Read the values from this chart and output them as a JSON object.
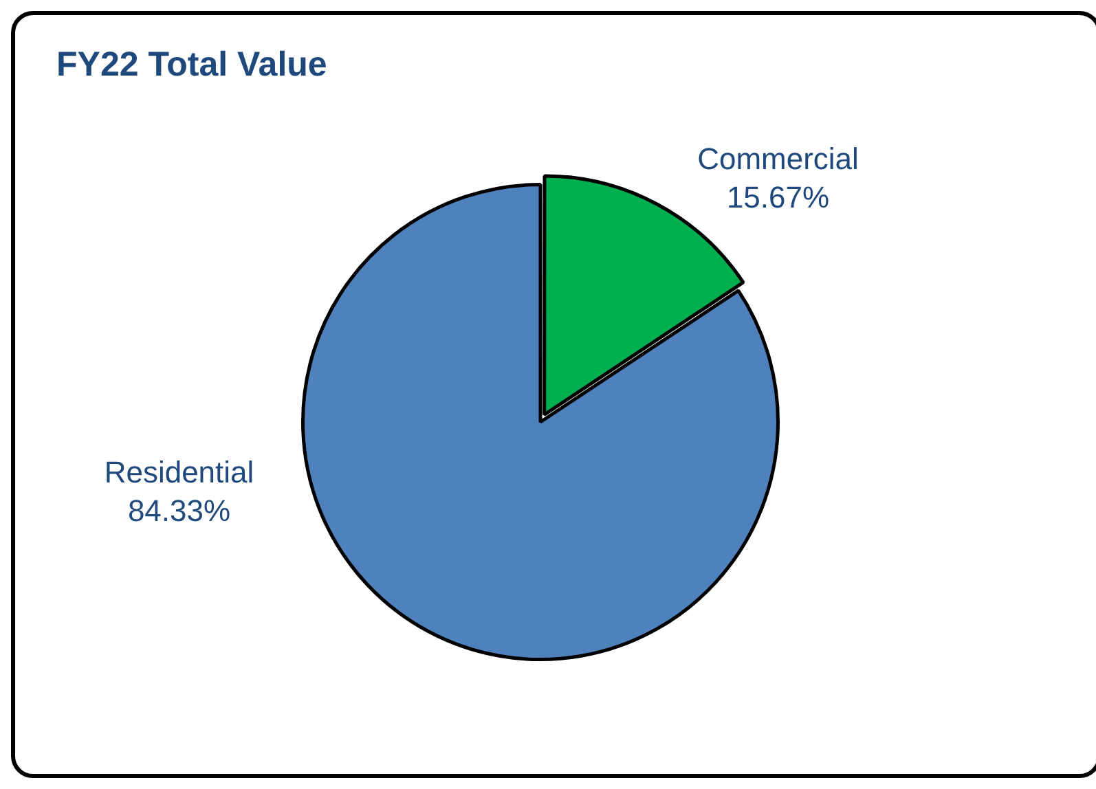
{
  "chart_data": {
    "type": "pie",
    "title": "FY22 Total Value",
    "categories": [
      "Commercial",
      "Residential"
    ],
    "values": [
      15.67,
      84.33
    ],
    "colors": [
      "#00b050",
      "#4f81bd"
    ],
    "value_labels": [
      "15.67%",
      "84.33%"
    ],
    "legend": false
  }
}
